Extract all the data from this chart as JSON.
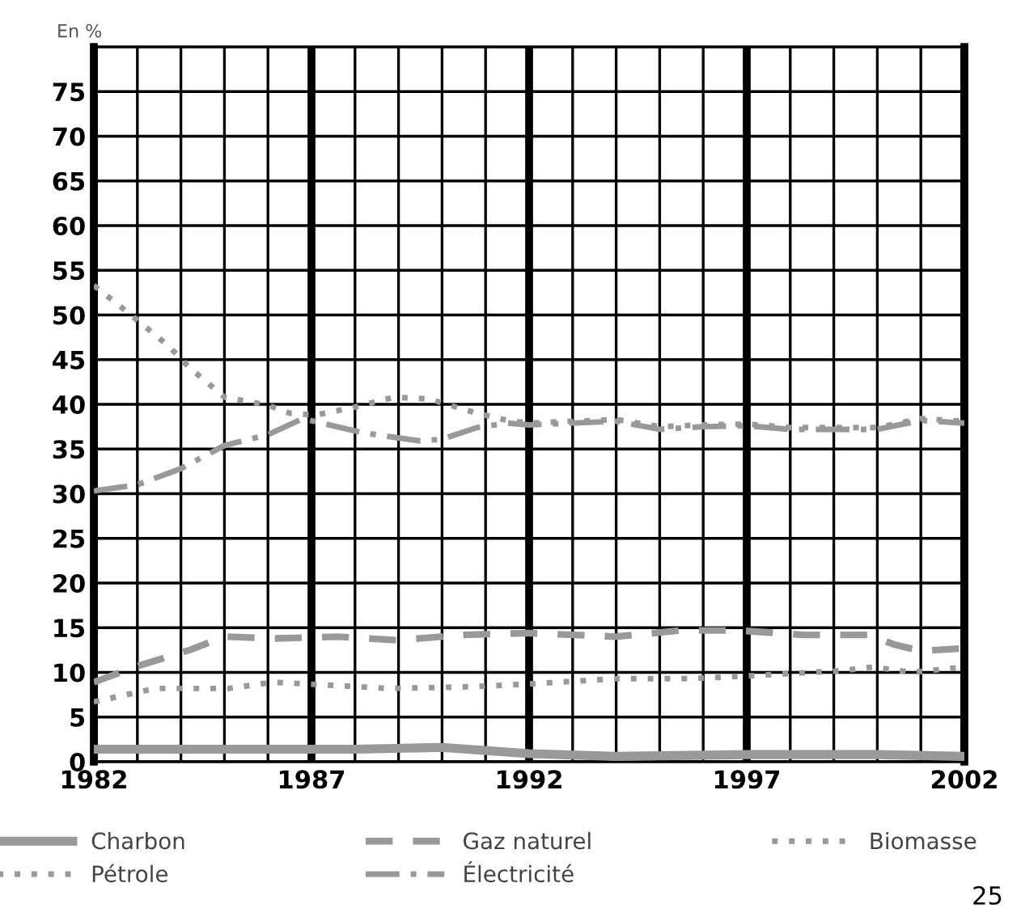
{
  "chart_data": {
    "type": "line",
    "ylabel": "En %",
    "annotations": [
      "25"
    ],
    "xlim": [
      1982,
      2002
    ],
    "ylim": [
      0,
      80
    ],
    "xticks": [
      1982,
      {
        "value": 1983,
        "label": null
      },
      {
        "value": 1984,
        "label": null
      },
      {
        "value": 1985,
        "label": null
      },
      {
        "value": 1986,
        "label": null
      },
      1987,
      {
        "value": 1988,
        "label": null
      },
      {
        "value": 1989,
        "label": null
      },
      {
        "value": 1990,
        "label": null
      },
      {
        "value": 1991,
        "label": null
      },
      1992,
      {
        "value": 1993,
        "label": null
      },
      {
        "value": 1994,
        "label": null
      },
      {
        "value": 1995,
        "label": null
      },
      {
        "value": 1996,
        "label": null
      },
      1997,
      {
        "value": 1998,
        "label": null
      },
      {
        "value": 1999,
        "label": null
      },
      {
        "value": 2000,
        "label": null
      },
      {
        "value": 2001,
        "label": null
      },
      2002
    ],
    "yticks": [
      0,
      5,
      10,
      15,
      20,
      25,
      30,
      35,
      40,
      45,
      50,
      55,
      60,
      65,
      70,
      75
    ],
    "grid": true,
    "legend": "bottom",
    "series": [
      {
        "name": "Charbon",
        "color": "#999999",
        "line_style": "solid",
        "x": [
          1982,
          1985,
          1988,
          1990,
          1992,
          1994,
          1997,
          2000,
          2002
        ],
        "values": [
          1.4,
          1.4,
          1.4,
          1.6,
          0.9,
          0.6,
          0.8,
          0.8,
          0.6
        ]
      },
      {
        "name": "Pétrole",
        "color": "#999999",
        "line_style": "dotted",
        "x": [
          1982,
          1982.7,
          1983.7,
          1984.2,
          1985,
          1986,
          1986.5,
          1987.1,
          1988,
          1988.9,
          1989.7,
          1990.8,
          1991.5,
          1992,
          1994,
          1995,
          1996,
          1997,
          1998,
          2000,
          2001,
          2002
        ],
        "values": [
          53.3,
          50.6,
          46.6,
          44.1,
          40.8,
          39.9,
          39,
          38.8,
          39.7,
          40.8,
          40.6,
          39,
          38.2,
          37.9,
          38.3,
          37.5,
          37.7,
          37.8,
          37.4,
          37.4,
          38.4,
          38.1
        ]
      },
      {
        "name": "Gaz naturel",
        "color": "#999999",
        "line_style": "dashed",
        "x": [
          1982,
          1983,
          1984.2,
          1985,
          1986.2,
          1987.6,
          1989,
          1990.5,
          1992,
          1994,
          1995.5,
          1996.8,
          1998.3,
          1999.8,
          2000.4,
          2001,
          2002
        ],
        "values": [
          8.9,
          10.7,
          12.5,
          14,
          13.8,
          14,
          13.6,
          14.2,
          14.4,
          14,
          14.7,
          14.7,
          14.2,
          14.2,
          13.1,
          12.4,
          12.7
        ]
      },
      {
        "name": "Électricité",
        "color": "#999999",
        "line_style": "dashdot",
        "x": [
          1982,
          1983,
          1984,
          1985,
          1986,
          1986.8,
          1988.2,
          1989.5,
          1990,
          1990.8,
          1991.5,
          1992,
          1994,
          1995,
          1996,
          1997,
          1998,
          2000,
          2001,
          2002
        ],
        "values": [
          30.3,
          31,
          32.8,
          35.4,
          36.6,
          38.4,
          36.8,
          35.9,
          36.1,
          37.4,
          37.9,
          37.7,
          38.1,
          37.2,
          37.5,
          37.6,
          37.2,
          37.2,
          38.2,
          37.9
        ]
      },
      {
        "name": "Biomasse",
        "color": "#999999",
        "line_style": "dotted",
        "x": [
          1982,
          1983.4,
          1985.1,
          1986.1,
          1987.3,
          1988.8,
          1990.7,
          1992,
          1994,
          1995.7,
          1997,
          1999.2,
          1999.9,
          2000.8,
          2002
        ],
        "values": [
          6.7,
          8.2,
          8.2,
          8.9,
          8.6,
          8.2,
          8.4,
          8.7,
          9.3,
          9.3,
          9.6,
          10.2,
          10.6,
          10,
          10.6
        ]
      }
    ]
  }
}
